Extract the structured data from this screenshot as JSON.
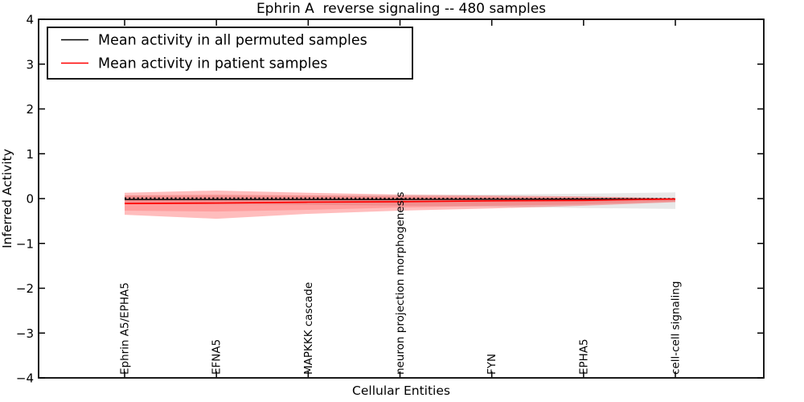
{
  "title": "Ephrin A  reverse signaling -- 480 samples",
  "xlabel": "Cellular Entities",
  "ylabel": "Inferred Activity",
  "legend": {
    "entries": [
      {
        "label": "Mean activity in all permuted samples",
        "color": "#000000"
      },
      {
        "label": "Mean activity in patient samples",
        "color": "#ff0000"
      }
    ]
  },
  "chart_data": {
    "type": "line",
    "title": "Ephrin A  reverse signaling -- 480 samples",
    "xlabel": "Cellular Entities",
    "ylabel": "Inferred Activity",
    "ylim": [
      -4,
      4
    ],
    "grid": false,
    "legend_position": "upper left",
    "ytick_labels": [
      "4",
      "3",
      "2",
      "1",
      "0",
      "−1",
      "−2",
      "−3",
      "−4"
    ],
    "categories": [
      "Ephrin A5/EPHA5",
      "EFNA5",
      "MAPKKK cascade",
      "neuron projection morphogenesis",
      "FYN",
      "EPHA5",
      "cell-cell signaling"
    ],
    "series": [
      {
        "name": "Mean activity in all permuted samples",
        "style": "solid",
        "color": "#000000",
        "width": 1.4,
        "values": [
          -0.02,
          -0.02,
          -0.02,
          -0.02,
          -0.015,
          -0.01,
          -0.01
        ]
      },
      {
        "name": "Zero reference",
        "style": "dotted",
        "color": "#000000",
        "width": 1.7,
        "values": [
          0.01,
          0.01,
          0.01,
          0.005,
          0.0,
          -0.003,
          -0.005
        ]
      },
      {
        "name": "Mean activity in patient samples",
        "style": "solid",
        "color": "#ff0000",
        "width": 1.7,
        "values": [
          -0.11,
          -0.1,
          -0.08,
          -0.07,
          -0.05,
          -0.04,
          -0.01
        ]
      }
    ],
    "bands": [
      {
        "name": "permuted-samples-std-band",
        "color": "rgba(0,0,0,0.09)",
        "upper": [
          0.07,
          0.07,
          0.07,
          0.08,
          0.09,
          0.11,
          0.14
        ],
        "lower": [
          -0.11,
          -0.13,
          -0.14,
          -0.16,
          -0.18,
          -0.21,
          -0.23
        ]
      },
      {
        "name": "patient-samples-outer-band",
        "color": "rgba(255,0,0,0.26)",
        "upper": [
          0.13,
          0.18,
          0.13,
          0.09,
          0.07,
          0.05,
          0.01
        ],
        "lower": [
          -0.36,
          -0.45,
          -0.34,
          -0.27,
          -0.22,
          -0.16,
          -0.08
        ]
      },
      {
        "name": "patient-samples-inner-band",
        "color": "rgba(255,0,0,0.16)",
        "upper": [
          0.07,
          0.09,
          0.07,
          0.05,
          0.04,
          0.03,
          0.01
        ],
        "lower": [
          -0.27,
          -0.29,
          -0.25,
          -0.2,
          -0.16,
          -0.13,
          -0.07
        ]
      }
    ]
  }
}
